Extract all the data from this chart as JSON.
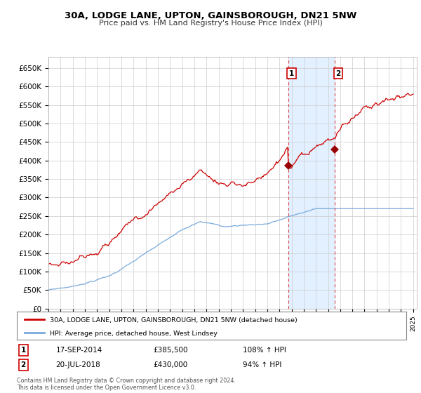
{
  "title": "30A, LODGE LANE, UPTON, GAINSBOROUGH, DN21 5NW",
  "subtitle": "Price paid vs. HM Land Registry's House Price Index (HPI)",
  "legend_line1": "30A, LODGE LANE, UPTON, GAINSBOROUGH, DN21 5NW (detached house)",
  "legend_line2": "HPI: Average price, detached house, West Lindsey",
  "annotation1_date": "17-SEP-2014",
  "annotation1_price": "£385,500",
  "annotation1_hpi": "108% ↑ HPI",
  "annotation2_date": "20-JUL-2018",
  "annotation2_price": "£430,000",
  "annotation2_hpi": "94% ↑ HPI",
  "footnote": "Contains HM Land Registry data © Crown copyright and database right 2024.\nThis data is licensed under the Open Government Licence v3.0.",
  "hpi_color": "#7aaadd",
  "price_color": "#cc0000",
  "shaded_color": "#ddeeff",
  "ylim_max": 680000,
  "yticks": [
    0,
    50000,
    100000,
    150000,
    200000,
    250000,
    300000,
    350000,
    400000,
    450000,
    500000,
    550000,
    600000,
    650000
  ],
  "ytick_labels": [
    "£0",
    "£50K",
    "£100K",
    "£150K",
    "£200K",
    "£250K",
    "£300K",
    "£350K",
    "£400K",
    "£450K",
    "£500K",
    "£550K",
    "£600K",
    "£650K"
  ],
  "sale1_x": 2014.72,
  "sale1_y": 385500,
  "sale2_x": 2018.55,
  "sale2_y": 430000,
  "xmin": 1995,
  "xmax": 2025.3
}
